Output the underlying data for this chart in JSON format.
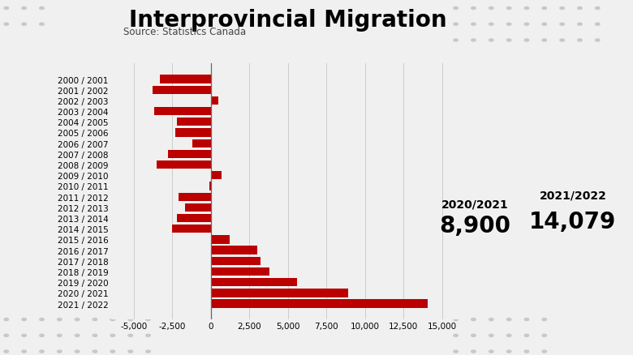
{
  "title": "Interprovincial Migration",
  "subtitle": "Source: Statistics Canada",
  "categories": [
    "2000 / 2001",
    "2001 / 2002",
    "2002 / 2003",
    "2003 / 2004",
    "2004 / 2005",
    "2005 / 2006",
    "2006 / 2007",
    "2007 / 2008",
    "2008 / 2009",
    "2009 / 2010",
    "2010 / 2011",
    "2011 / 2012",
    "2012 / 2013",
    "2013 / 2014",
    "2014 / 2015",
    "2015 / 2016",
    "2016 / 2017",
    "2017 / 2018",
    "2018 / 2019",
    "2019 / 2020",
    "2020 / 2021",
    "2021 / 2022"
  ],
  "values": [
    -3300,
    -3800,
    500,
    -3700,
    -2200,
    -2300,
    -1200,
    -2800,
    -3500,
    700,
    -100,
    -2100,
    -1700,
    -2200,
    -2500,
    1200,
    3000,
    3200,
    3800,
    5600,
    8900,
    14079
  ],
  "bar_color": "#bb0000",
  "background_color": "#f0f0f0",
  "xlim": [
    -6500,
    16500
  ],
  "xticks": [
    -5000,
    -2500,
    0,
    2500,
    5000,
    7500,
    10000,
    12500,
    15000
  ],
  "annotation_2020_2021_label": "2020/2021",
  "annotation_2020_2021_value": "8,900",
  "annotation_2021_2022_label": "2021/2022",
  "annotation_2021_2022_value": "14,079",
  "title_fontsize": 20,
  "subtitle_fontsize": 8.5,
  "tick_fontsize": 7.5,
  "bar_height": 0.78,
  "dot_color": "#c8c8c8",
  "dot_size": 3
}
